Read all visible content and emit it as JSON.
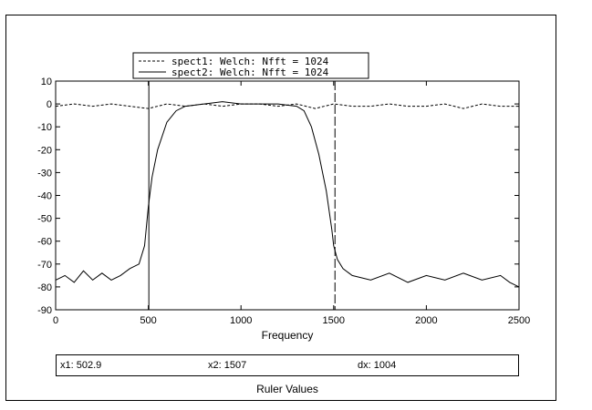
{
  "chart_data": {
    "type": "line",
    "title": "",
    "xlabel": "Frequency",
    "ylabel": "",
    "xlim": [
      0,
      2500
    ],
    "ylim": [
      -90,
      10
    ],
    "xticks": [
      0,
      500,
      1000,
      1500,
      2000,
      2500
    ],
    "yticks": [
      10,
      0,
      -10,
      -20,
      -30,
      -40,
      -50,
      -60,
      -70,
      -80,
      -90
    ],
    "grid": false,
    "legend_position": "top-left-outside",
    "series": [
      {
        "name": "spect1: Welch: Nfft = 1024",
        "style": "dashed",
        "x": [
          0,
          100,
          200,
          300,
          400,
          500,
          600,
          700,
          800,
          900,
          1000,
          1100,
          1200,
          1300,
          1400,
          1500,
          1600,
          1700,
          1800,
          1900,
          2000,
          2100,
          2200,
          2300,
          2400,
          2500
        ],
        "y": [
          -1,
          0,
          -1,
          0,
          -1,
          -2,
          0,
          -1,
          0,
          -1,
          0,
          0,
          -1,
          0,
          -2,
          0,
          -1,
          -1,
          0,
          -1,
          -1,
          0,
          -2,
          0,
          -1,
          -1
        ]
      },
      {
        "name": "spect2: Welch: Nfft = 1024",
        "style": "solid",
        "x": [
          0,
          50,
          100,
          150,
          200,
          250,
          300,
          350,
          400,
          450,
          480,
          500,
          520,
          550,
          600,
          650,
          700,
          800,
          900,
          1000,
          1100,
          1200,
          1300,
          1340,
          1380,
          1420,
          1460,
          1490,
          1500,
          1520,
          1550,
          1600,
          1700,
          1800,
          1900,
          2000,
          2100,
          2200,
          2300,
          2400,
          2450,
          2500
        ],
        "y": [
          -77,
          -75,
          -78,
          -73,
          -77,
          -74,
          -77,
          -75,
          -72,
          -70,
          -62,
          -45,
          -32,
          -20,
          -8,
          -3,
          -1,
          0,
          1,
          0,
          0,
          0,
          -1,
          -3,
          -10,
          -22,
          -38,
          -55,
          -62,
          -68,
          -72,
          -75,
          -77,
          -74,
          -78,
          -75,
          -77,
          -74,
          -77,
          -75,
          -78,
          -80
        ]
      }
    ],
    "rulers": [
      {
        "x": 502.9,
        "style": "solid"
      },
      {
        "x": 1507,
        "style": "dashed"
      }
    ]
  },
  "ruler_values": {
    "x1_label": "x1: 502.9",
    "x2_label": "x2: 1507",
    "dx_label": "dx: 1004",
    "title": "Ruler Values"
  }
}
